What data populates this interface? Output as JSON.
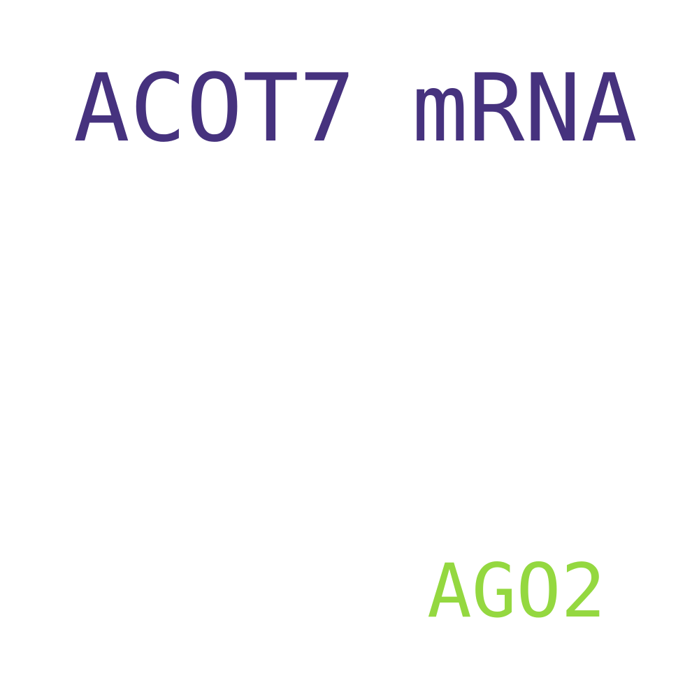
{
  "words": {
    "primary": {
      "text": "ACOT7 mRNA",
      "color": "#46327e"
    },
    "secondary": {
      "text": "AGO2",
      "color": "#94d840"
    }
  }
}
